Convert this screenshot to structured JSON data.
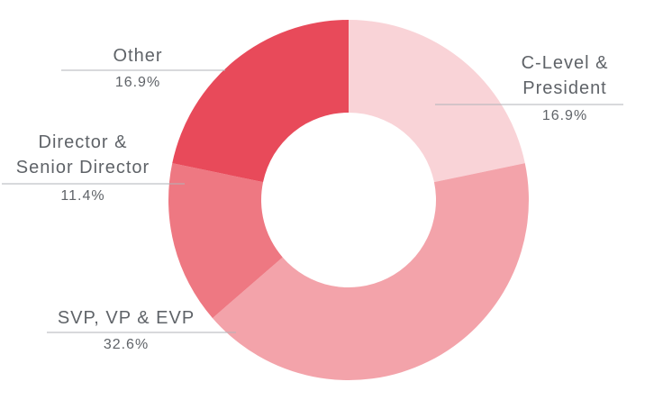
{
  "chart_data": {
    "type": "donut",
    "categories": [
      "C-Level & President",
      "SVP, VP & EVP",
      "Director & Senior Director",
      "Other"
    ],
    "values": [
      16.9,
      32.6,
      11.4,
      16.9
    ],
    "value_labels": [
      "16.9%",
      "32.6%",
      "11.4%",
      "16.9%"
    ],
    "colors": [
      "#f9d3d7",
      "#f3a3aa",
      "#ee7882",
      "#e84a5a"
    ]
  }
}
